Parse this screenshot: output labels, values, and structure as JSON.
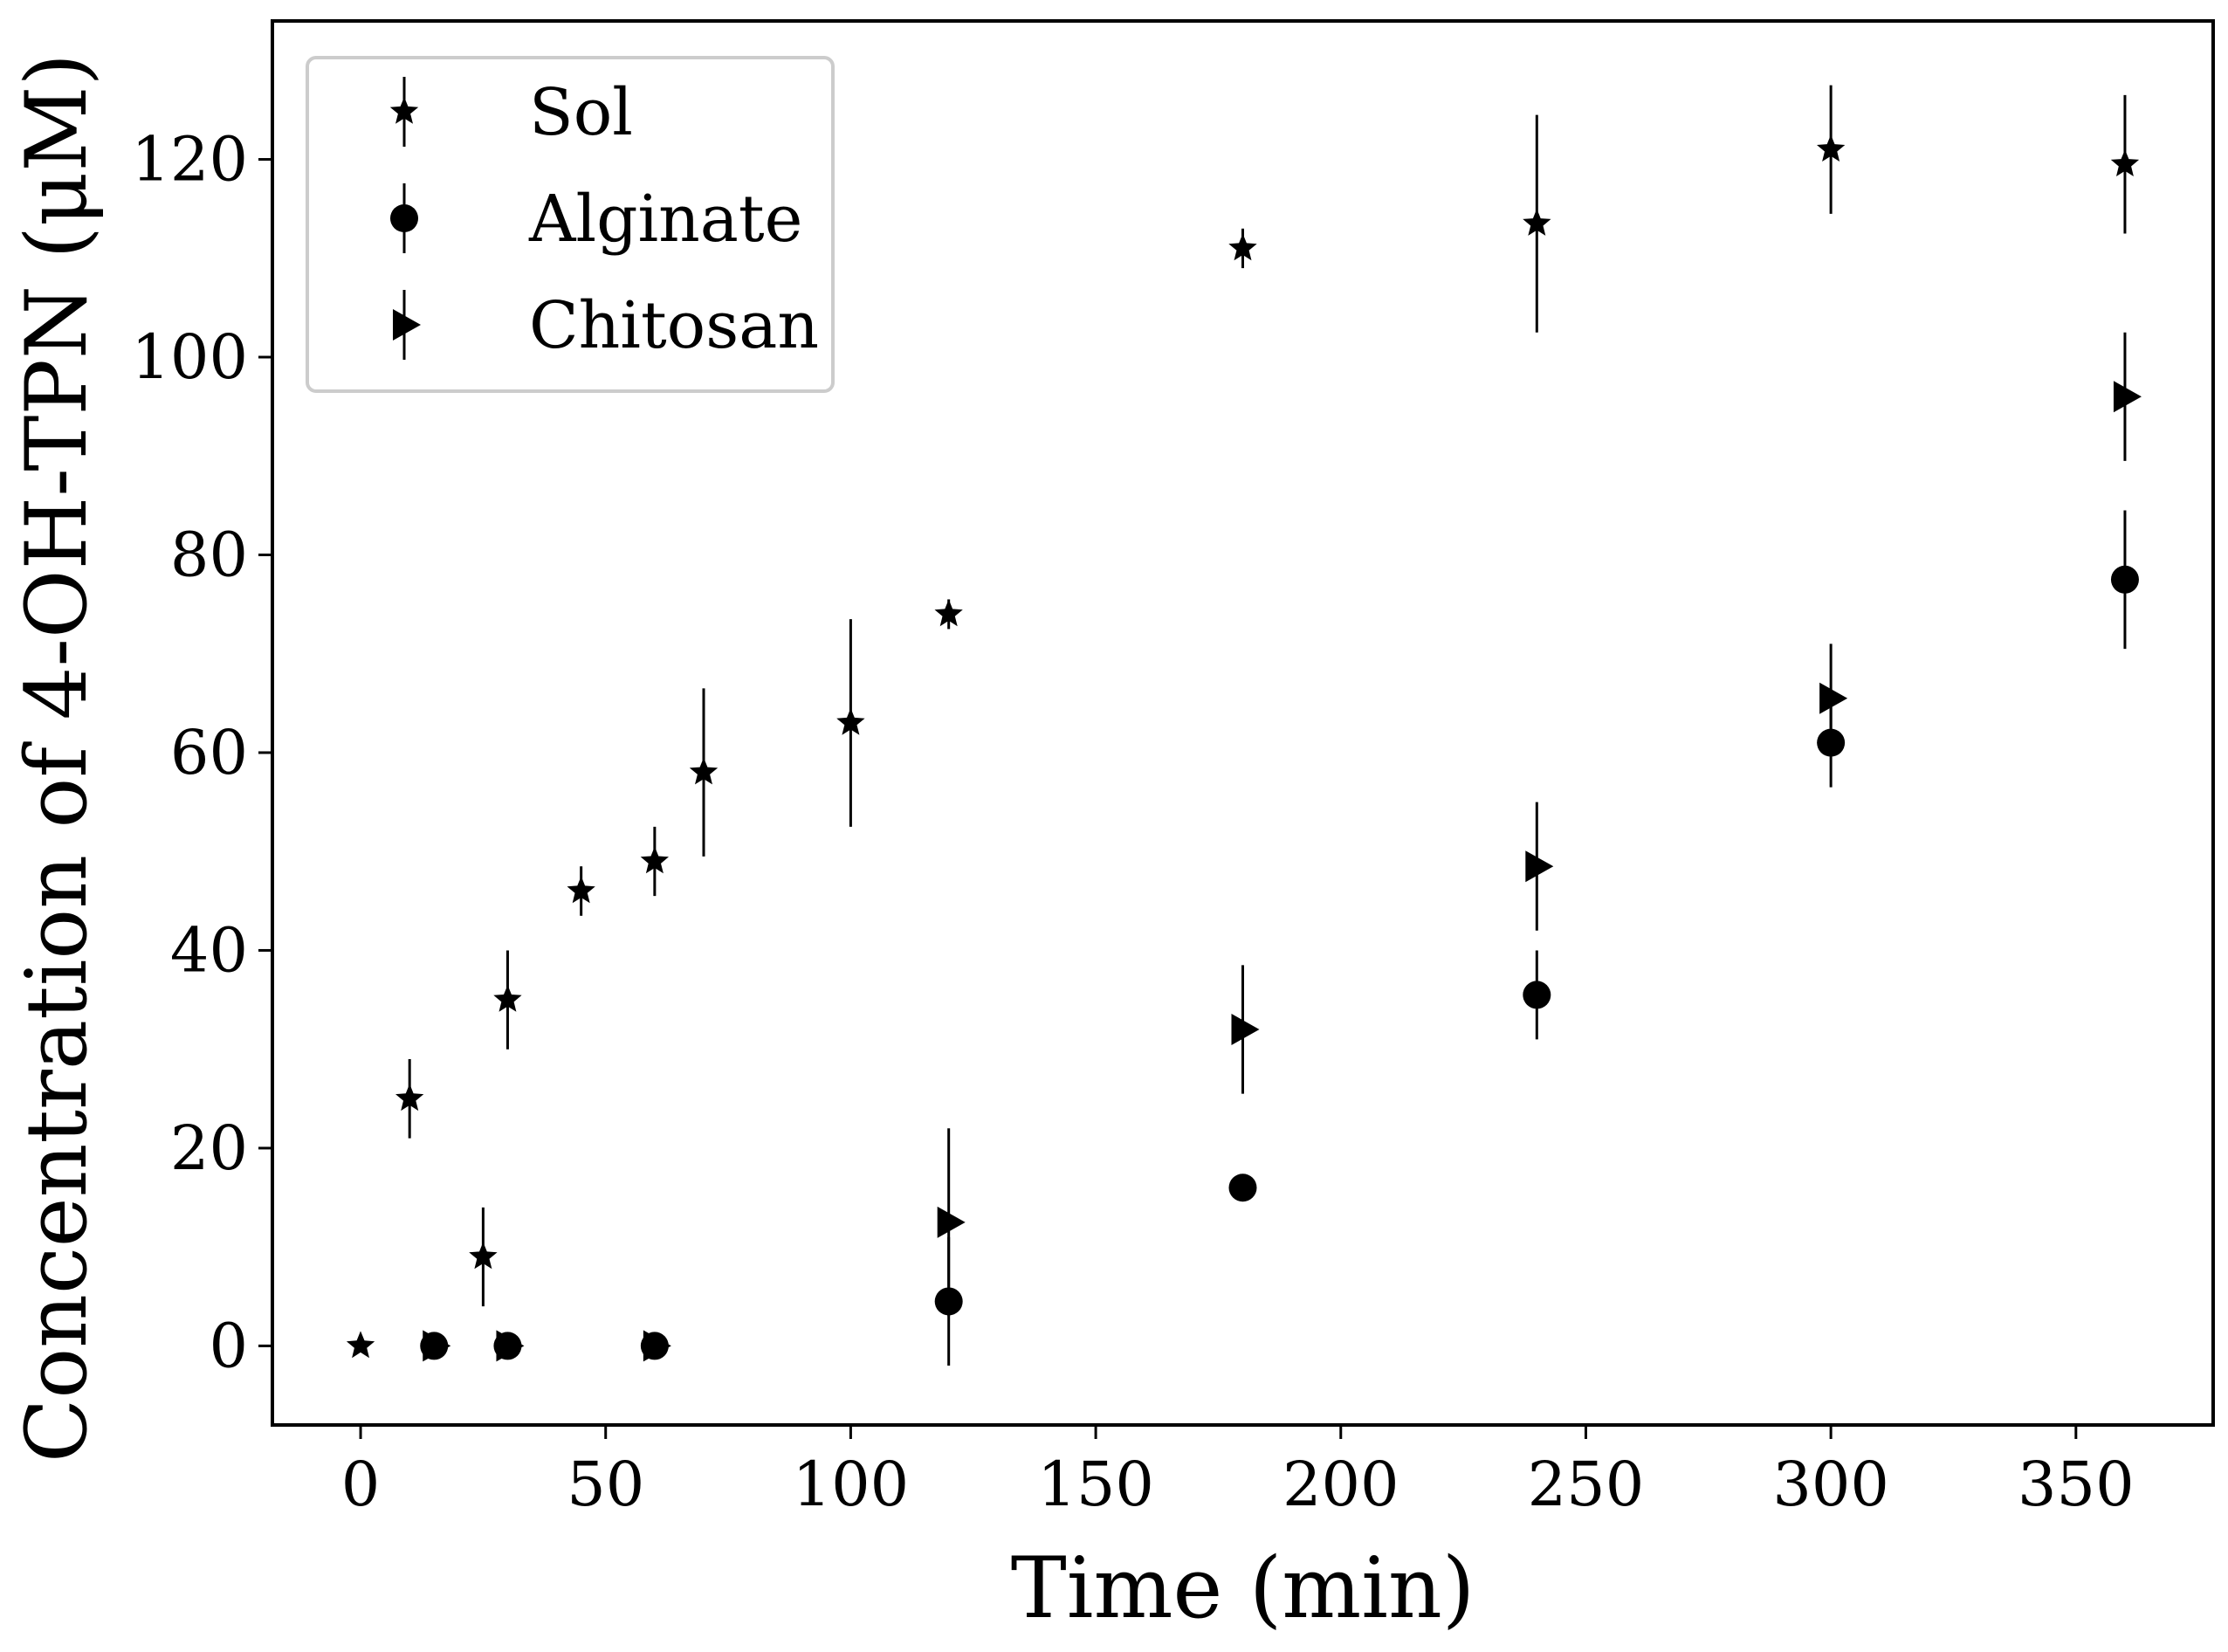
{
  "chart_data": {
    "type": "scatter",
    "title": "",
    "xlabel": "Time (min)",
    "ylabel": "Concentration of 4-OH-TPN (μM)",
    "xlim": [
      -18,
      378
    ],
    "ylim": [
      -8,
      134
    ],
    "xticks": [
      0,
      50,
      100,
      150,
      200,
      250,
      300,
      350
    ],
    "yticks": [
      0,
      20,
      40,
      60,
      80,
      100,
      120
    ],
    "legend_position": "top-left",
    "series": [
      {
        "name": "Sol",
        "marker": "star",
        "x": [
          0,
          10,
          25,
          30,
          45,
          60,
          70,
          100,
          120,
          180,
          240,
          300,
          360
        ],
        "y": [
          0,
          25,
          9,
          35,
          46,
          49,
          58,
          63,
          74,
          111,
          113.5,
          121,
          119.5
        ],
        "err": [
          0,
          4,
          5,
          5,
          2.5,
          3.5,
          8.5,
          10.5,
          1.5,
          2,
          11,
          6.5,
          7
        ]
      },
      {
        "name": "Alginate",
        "marker": "circle",
        "x": [
          15,
          30,
          60,
          120,
          180,
          240,
          300,
          360
        ],
        "y": [
          0,
          0,
          0,
          4.5,
          16,
          35.5,
          61,
          77.5
        ],
        "err": [
          0,
          0,
          0,
          6.5,
          0,
          4.5,
          4.5,
          7
        ]
      },
      {
        "name": "Chitosan",
        "marker": "triangle-right",
        "x": [
          15,
          30,
          60,
          120,
          180,
          240,
          300,
          360
        ],
        "y": [
          0,
          0,
          0,
          12.5,
          32,
          48.5,
          65.5,
          96
        ],
        "err": [
          0,
          0,
          0,
          9.5,
          6.5,
          6.5,
          5.5,
          6.5
        ]
      }
    ]
  }
}
